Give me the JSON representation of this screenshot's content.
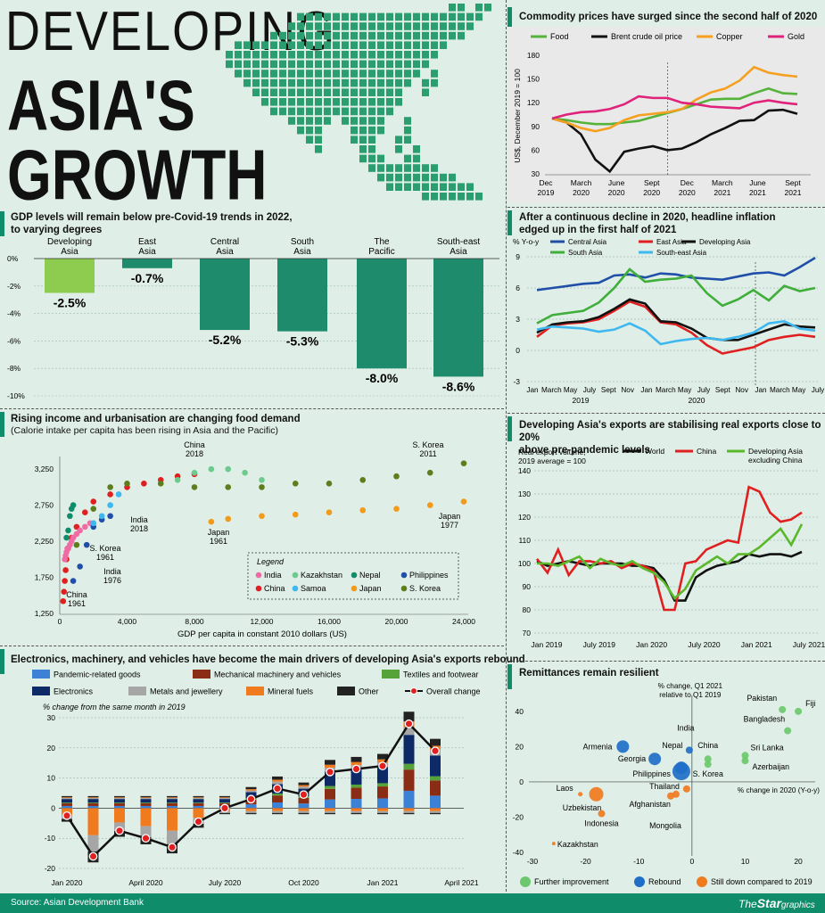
{
  "header": {
    "title_line1": "DEVELOPING",
    "title_line2": "ASIA'S",
    "title_line3": "GROWTH"
  },
  "colors": {
    "accent": "#0f8c6a",
    "map": "#2a9e6e",
    "dev_asia_bar": "#8dcc4f",
    "region_bar": "#1e8c6c"
  },
  "gdp": {
    "title": "GDP levels will remain below pre-Covid-19 trends in 2022,",
    "title2": "to varying degrees",
    "y_ticks": [
      "0%",
      "-2%",
      "-4%",
      "-6%",
      "-8%",
      "-10%"
    ],
    "chart_data": {
      "type": "bar",
      "categories": [
        "Developing Asia",
        "East Asia",
        "Central Asia",
        "South Asia",
        "The Pacific",
        "South-east Asia"
      ],
      "labels": [
        [
          "Developing",
          "Asia"
        ],
        [
          "East",
          "Asia"
        ],
        [
          "Central",
          "Asia"
        ],
        [
          "South",
          "Asia"
        ],
        [
          "The",
          "Pacific"
        ],
        [
          "South-east",
          "Asia"
        ]
      ],
      "values": [
        -2.5,
        -0.7,
        -5.2,
        -5.3,
        -8.0,
        -8.6
      ],
      "value_labels": [
        "-2.5%",
        "-0.7%",
        "-5.2%",
        "-5.3%",
        "-8.0%",
        "-8.6%"
      ],
      "ylim": [
        -10,
        0
      ]
    }
  },
  "food": {
    "title": "Rising income and urbanisation are changing food demand",
    "subtitle": "(Calorie intake per capita has been rising in Asia and the Pacific)",
    "xlabel": "GDP per capita in constant 2010 dollars (US)",
    "x_ticks": [
      "0",
      "4,000",
      "8,000",
      "12,000",
      "16,000",
      "20,000",
      "24,000"
    ],
    "y_ticks": [
      "1,250",
      "1,750",
      "2,250",
      "2,750",
      "3,250"
    ],
    "legend_title": "Legend",
    "legend": [
      {
        "name": "India",
        "color": "#f06ba4"
      },
      {
        "name": "Kazakhstan",
        "color": "#6ccb8c"
      },
      {
        "name": "Nepal",
        "color": "#0f8c6a"
      },
      {
        "name": "Philippines",
        "color": "#1f4fa8"
      },
      {
        "name": "China",
        "color": "#e02020"
      },
      {
        "name": "Samoa",
        "color": "#3fb8f0"
      },
      {
        "name": "Japan",
        "color": "#f29a1a"
      },
      {
        "name": "S. Korea",
        "color": "#5e7d1c"
      }
    ],
    "annotations": [
      {
        "text": "China\n2018"
      },
      {
        "text": "S. Korea\n2011"
      },
      {
        "text": "India\n2018"
      },
      {
        "text": "S. Korea\n1961"
      },
      {
        "text": "India\n1976"
      },
      {
        "text": "China\n1961"
      },
      {
        "text": "Japan\n1961"
      },
      {
        "text": "Japan\n1977"
      }
    ],
    "chart_data": {
      "type": "scatter",
      "xlabel": "GDP per capita in constant 2010 dollars (US)",
      "xlim": [
        0,
        24000
      ],
      "ylim": [
        1250,
        3400
      ],
      "series": [
        {
          "name": "China",
          "x": [
            200,
            250,
            300,
            350,
            400,
            500,
            700,
            1000,
            1500,
            2000,
            3000,
            4000,
            5000,
            6000,
            7000,
            8000
          ],
          "y": [
            1420,
            1550,
            1700,
            1850,
            2000,
            2150,
            2300,
            2450,
            2650,
            2800,
            2900,
            3000,
            3050,
            3100,
            3150,
            3180
          ]
        },
        {
          "name": "India",
          "x": [
            300,
            350,
            400,
            450,
            500,
            600,
            700,
            800,
            1000,
            1200,
            1500,
            1800,
            2000
          ],
          "y": [
            2000,
            2050,
            2100,
            2150,
            2150,
            2200,
            2250,
            2300,
            2350,
            2400,
            2450,
            2500,
            2500
          ]
        },
        {
          "name": "S. Korea",
          "x": [
            1000,
            2000,
            3000,
            4000,
            6000,
            8000,
            10000,
            12000,
            14000,
            16000,
            18000,
            20000,
            22000,
            24000
          ],
          "y": [
            2200,
            2700,
            3000,
            3050,
            3050,
            3000,
            3000,
            3000,
            3050,
            3050,
            3100,
            3150,
            3200,
            3330
          ]
        },
        {
          "name": "Kazakhstan",
          "x": [
            7000,
            8000,
            9000,
            10000,
            11000,
            12000
          ],
          "y": [
            3100,
            3200,
            3250,
            3250,
            3200,
            3100
          ]
        },
        {
          "name": "Philippines",
          "x": [
            800,
            1200,
            1600,
            2000,
            2500,
            3000
          ],
          "y": [
            1700,
            1900,
            2200,
            2450,
            2550,
            2600
          ]
        },
        {
          "name": "Samoa",
          "x": [
            2000,
            2500,
            3000,
            3500
          ],
          "y": [
            2500,
            2600,
            2750,
            2900
          ]
        },
        {
          "name": "Nepal",
          "x": [
            400,
            500,
            600,
            700,
            800
          ],
          "y": [
            2300,
            2400,
            2600,
            2700,
            2750
          ]
        },
        {
          "name": "Japan",
          "x": [
            9000,
            10000,
            12000,
            14000,
            16000,
            18000,
            20000,
            22000,
            24000
          ],
          "y": [
            2520,
            2560,
            2600,
            2620,
            2650,
            2680,
            2700,
            2750,
            2800
          ]
        }
      ]
    }
  },
  "exports_drivers": {
    "title": "Electronics, machinery, and vehicles have become the main drivers of developing Asia's exports rebound",
    "legend": [
      {
        "name": "Pandemic-related goods",
        "color": "#3b82d6"
      },
      {
        "name": "Mechanical machinery and vehicles",
        "color": "#8b2d14"
      },
      {
        "name": "Textiles and footwear",
        "color": "#56a33a"
      },
      {
        "name": "Electronics",
        "color": "#0d2a66"
      },
      {
        "name": "Metals and jewellery",
        "color": "#a6a6a6"
      },
      {
        "name": "Mineral fuels",
        "color": "#f07a1e"
      },
      {
        "name": "Other",
        "color": "#222222"
      },
      {
        "name": "Overall change",
        "color": "#e02020"
      }
    ],
    "ylabel": "% change from the same month in 2019",
    "y_ticks": [
      "30",
      "20",
      "10",
      "0",
      "-10",
      "-20"
    ],
    "x_ticks": [
      "Jan 2020",
      "April 2020",
      "July 2020",
      "Oct 2020",
      "Jan 2021",
      "April 2021"
    ],
    "chart_data": {
      "type": "bar",
      "ylim": [
        -20,
        30
      ],
      "x": [
        "Jan 2020",
        "Feb 2020",
        "Mar 2020",
        "Apr 2020",
        "May 2020",
        "Jun 2020",
        "Jul 2020",
        "Aug 2020",
        "Sep 2020",
        "Oct 2020",
        "Nov 2020",
        "Dec 2020",
        "Jan 2021",
        "Feb 2021",
        "Mar 2021"
      ],
      "overall": [
        -2.5,
        -16,
        -7.5,
        -10,
        -13,
        -4.5,
        0,
        3,
        6.5,
        4.5,
        12,
        13,
        14,
        28,
        19
      ]
    }
  },
  "commodity": {
    "title": "Commodity prices have surged since the second half of 2020",
    "ylabel": "US$, December 2019 = 100",
    "y_ticks": [
      "180",
      "150",
      "120",
      "90",
      "60",
      "30"
    ],
    "x_ticks": [
      [
        "Dec",
        "2019"
      ],
      [
        "March",
        "2020"
      ],
      [
        "June",
        "2020"
      ],
      [
        "Sept",
        "2020"
      ],
      [
        "Dec",
        "2020"
      ],
      [
        "March",
        "2021"
      ],
      [
        "June",
        "2021"
      ],
      [
        "Sept",
        "2021"
      ]
    ],
    "chart_data": {
      "type": "line",
      "ylim": [
        30,
        180
      ],
      "series": [
        {
          "name": "Food",
          "color": "#56b33a",
          "values": [
            100,
            98,
            95,
            93,
            93,
            95,
            97,
            102,
            107,
            112,
            118,
            124,
            125,
            125,
            132,
            138,
            132,
            131
          ]
        },
        {
          "name": "Brent crude oil price",
          "color": "#111111",
          "values": [
            100,
            95,
            80,
            48,
            33,
            58,
            62,
            65,
            60,
            62,
            70,
            80,
            88,
            97,
            98,
            110,
            111,
            106
          ]
        },
        {
          "name": "Copper",
          "color": "#f5a020",
          "values": [
            100,
            95,
            88,
            84,
            88,
            98,
            104,
            106,
            108,
            112,
            124,
            133,
            138,
            148,
            165,
            158,
            155,
            153
          ]
        },
        {
          "name": "Gold",
          "color": "#e0227a",
          "values": [
            100,
            105,
            108,
            109,
            112,
            118,
            128,
            126,
            126,
            120,
            118,
            115,
            114,
            113,
            120,
            123,
            120,
            118
          ]
        }
      ]
    }
  },
  "inflation": {
    "title": "After a continuous decline in 2020, headline inflation",
    "title2": "edged up in the first half of 2021",
    "ylabel": "% Y-o-y",
    "y_ticks": [
      "9",
      "6",
      "3",
      "0",
      "-3"
    ],
    "x_ticks": [
      "Jan",
      "March",
      "May",
      "July",
      "Sept",
      "Nov",
      "Jan",
      "March",
      "May",
      "July",
      "Sept",
      "Nov",
      "Jan",
      "March",
      "May",
      "July"
    ],
    "year_labels": [
      "2019",
      "2020"
    ],
    "chart_data": {
      "type": "line",
      "ylim": [
        -3,
        9
      ],
      "series": [
        {
          "name": "Central Asia",
          "color": "#1f4fa8",
          "values": [
            5.8,
            6.0,
            6.2,
            6.4,
            6.5,
            7.2,
            7.3,
            7.0,
            7.4,
            7.3,
            7.0,
            6.9,
            6.8,
            7.1,
            7.4,
            7.5,
            7.2,
            8.0,
            8.9
          ]
        },
        {
          "name": "East Asia",
          "color": "#e02020",
          "values": [
            1.3,
            2.4,
            2.6,
            2.7,
            3.0,
            3.8,
            4.7,
            4.2,
            2.7,
            2.5,
            1.7,
            0.5,
            -0.3,
            0.0,
            0.3,
            1.0,
            1.3,
            1.5,
            1.3
          ]
        },
        {
          "name": "Developing Asia",
          "color": "#111111",
          "values": [
            1.7,
            2.5,
            2.7,
            2.8,
            3.2,
            4.0,
            4.9,
            4.5,
            2.8,
            2.7,
            2.1,
            1.2,
            1.0,
            1.0,
            1.5,
            2.0,
            2.5,
            2.3,
            2.2
          ]
        },
        {
          "name": "South Asia",
          "color": "#3fae3a",
          "values": [
            2.6,
            3.4,
            3.6,
            3.8,
            4.6,
            6.0,
            7.8,
            6.6,
            6.8,
            6.9,
            7.2,
            5.5,
            4.3,
            4.9,
            5.8,
            4.8,
            6.2,
            5.7,
            6.0
          ]
        },
        {
          "name": "South-east Asia",
          "color": "#3fb8f0",
          "values": [
            2.0,
            2.3,
            2.2,
            2.1,
            1.8,
            2.0,
            2.6,
            1.9,
            0.6,
            0.9,
            1.1,
            1.2,
            1.0,
            1.3,
            1.7,
            2.6,
            2.8,
            2.1,
            1.9
          ]
        }
      ]
    }
  },
  "real_exports": {
    "title": "Developing Asia's exports are stabilising real exports close to 20%",
    "title2": "above pre-pandemic levels",
    "ylabel_line1": "Real export volume,",
    "ylabel_line2": "2019 average = 100",
    "y_ticks": [
      "140",
      "130",
      "120",
      "110",
      "100",
      "90",
      "80",
      "70"
    ],
    "x_ticks": [
      "Jan 2019",
      "July 2019",
      "Jan 2020",
      "July 2020",
      "Jan 2021",
      "July 2021"
    ],
    "chart_data": {
      "type": "line",
      "ylim": [
        70,
        140
      ],
      "series": [
        {
          "name": "World",
          "color": "#111111",
          "values": [
            101,
            99,
            100,
            101,
            100,
            99,
            100,
            100,
            100,
            99,
            99,
            98,
            93,
            84,
            84,
            94,
            97,
            99,
            100,
            101,
            104,
            103,
            104,
            104,
            103,
            105
          ]
        },
        {
          "name": "China",
          "color": "#e02020",
          "values": [
            102,
            96,
            106,
            95,
            101,
            101,
            100,
            101,
            98,
            100,
            99,
            97,
            80,
            80,
            100,
            101,
            106,
            108,
            110,
            109,
            133,
            131,
            122,
            118,
            119,
            122
          ]
        },
        {
          "name": "Developing Asia excluding China",
          "color": "#5ab82a",
          "values": [
            100,
            100,
            99,
            101,
            103,
            98,
            102,
            100,
            99,
            101,
            98,
            96,
            92,
            85,
            89,
            97,
            100,
            103,
            100,
            104,
            104,
            107,
            111,
            115,
            108,
            117
          ]
        }
      ]
    }
  },
  "remittances": {
    "title": "Remittances remain resilient",
    "ylabel_line1": "% change, Q1 2021",
    "ylabel_line2": "relative to Q1 2019",
    "xlabel": "% change in 2020 (Y-o-y)",
    "y_ticks": [
      "40",
      "20",
      "0",
      "-20",
      "-40"
    ],
    "x_ticks": [
      "-30",
      "-20",
      "-10",
      "0",
      "10",
      "20"
    ],
    "legend": [
      {
        "name": "Further improvement",
        "color": "#6cc86c"
      },
      {
        "name": "Rebound",
        "color": "#1f6fc8"
      },
      {
        "name": "Still down compared to 2019",
        "color": "#f07a1e"
      }
    ],
    "chart_data": {
      "type": "scatter",
      "xlim": [
        -30,
        22
      ],
      "ylim": [
        -42,
        48
      ],
      "points": [
        {
          "label": "Pakistan",
          "x": 17,
          "y": 41,
          "group": "Further improvement"
        },
        {
          "label": "Fiji",
          "x": 20,
          "y": 40,
          "group": "Further improvement"
        },
        {
          "label": "Bangladesh",
          "x": 18,
          "y": 29,
          "group": "Further improvement"
        },
        {
          "label": "Sri Lanka",
          "x": 10,
          "y": 15,
          "group": "Further improvement"
        },
        {
          "label": "Azerbaijan",
          "x": 10,
          "y": 12,
          "group": "Further improvement"
        },
        {
          "label": "S. Korea",
          "x": 3,
          "y": 10,
          "group": "Further improvement"
        },
        {
          "label": "China",
          "x": 3,
          "y": 13,
          "group": "Further improvement"
        },
        {
          "label": "India",
          "x": -0.5,
          "y": 18,
          "group": "Rebound"
        },
        {
          "label": "Nepal",
          "x": -2,
          "y": 8,
          "group": "Rebound"
        },
        {
          "label": "Armenia",
          "x": -13,
          "y": 20,
          "group": "Rebound"
        },
        {
          "label": "Georgia",
          "x": -7,
          "y": 13,
          "group": "Rebound"
        },
        {
          "label": "Philippines",
          "x": -2,
          "y": 6,
          "group": "Rebound"
        },
        {
          "label": "Laos",
          "x": -21,
          "y": -7,
          "group": "Still down compared to 2019"
        },
        {
          "label": "Uzbekistan",
          "x": -18,
          "y": -7,
          "group": "Still down compared to 2019"
        },
        {
          "label": "Indonesia",
          "x": -17,
          "y": -18,
          "group": "Still down compared to 2019"
        },
        {
          "label": "Thailand",
          "x": -1,
          "y": -4,
          "group": "Still down compared to 2019"
        },
        {
          "label": "Afghanistan",
          "x": -3,
          "y": -7,
          "group": "Still down compared to 2019"
        },
        {
          "label": "Mongolia",
          "x": -4,
          "y": -8,
          "group": "Still down compared to 2019"
        },
        {
          "label": "Kazakhstan",
          "x": -26,
          "y": -35,
          "group": "Still down compared to 2019"
        }
      ]
    }
  },
  "footer": {
    "source": "Source: Asian Development Bank",
    "brand_the": "The",
    "brand_star": "Star",
    "brand_graphics": "graphics"
  }
}
